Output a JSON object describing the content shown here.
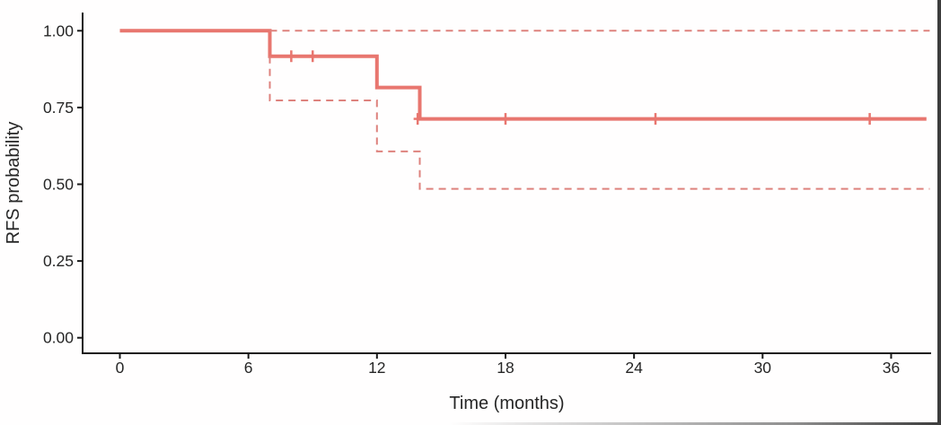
{
  "chart_data": {
    "type": "line",
    "subtype": "kaplan-meier-step",
    "title": "",
    "xlabel": "Time (months)",
    "ylabel": "RFS probability",
    "xlim": [
      -1.74,
      37.9
    ],
    "ylim": [
      -0.05,
      1.06
    ],
    "x_ticks": [
      0,
      6,
      12,
      18,
      24,
      30,
      36
    ],
    "y_tick_labels": [
      "1.00",
      "0.75",
      "0.50",
      "0.25",
      "0.00"
    ],
    "y_tick_values": [
      1.0,
      0.75,
      0.5,
      0.25,
      0.0
    ],
    "grid": false,
    "legend": "none",
    "colors": {
      "curve": "#e8766f",
      "ci": "#de827d",
      "axis": "#1a1a1a",
      "tick_text": "#262626"
    },
    "series": [
      {
        "name": "KM estimate",
        "style": "solid",
        "width": 4,
        "points": [
          [
            0,
            1.0
          ],
          [
            7,
            1.0
          ],
          [
            7,
            0.917
          ],
          [
            12,
            0.917
          ],
          [
            12,
            0.815
          ],
          [
            14,
            0.815
          ],
          [
            14,
            0.713
          ],
          [
            37.65,
            0.713
          ]
        ]
      },
      {
        "name": "Upper 95% CI",
        "style": "dashed",
        "width": 2,
        "points": [
          [
            7,
            1.0
          ],
          [
            37.8,
            1.0
          ]
        ]
      },
      {
        "name": "Lower 95% CI",
        "style": "dashed",
        "width": 2,
        "points": [
          [
            7,
            0.917
          ],
          [
            7,
            0.773
          ],
          [
            12,
            0.773
          ],
          [
            12,
            0.607
          ],
          [
            14,
            0.607
          ],
          [
            14,
            0.485
          ],
          [
            37.8,
            0.485
          ]
        ]
      }
    ],
    "censor_marks": {
      "symbol": "+",
      "points": [
        [
          8,
          0.917
        ],
        [
          9,
          0.917
        ],
        [
          13.9,
          0.713
        ],
        [
          18,
          0.713
        ],
        [
          25,
          0.713
        ],
        [
          35,
          0.713
        ]
      ]
    }
  }
}
